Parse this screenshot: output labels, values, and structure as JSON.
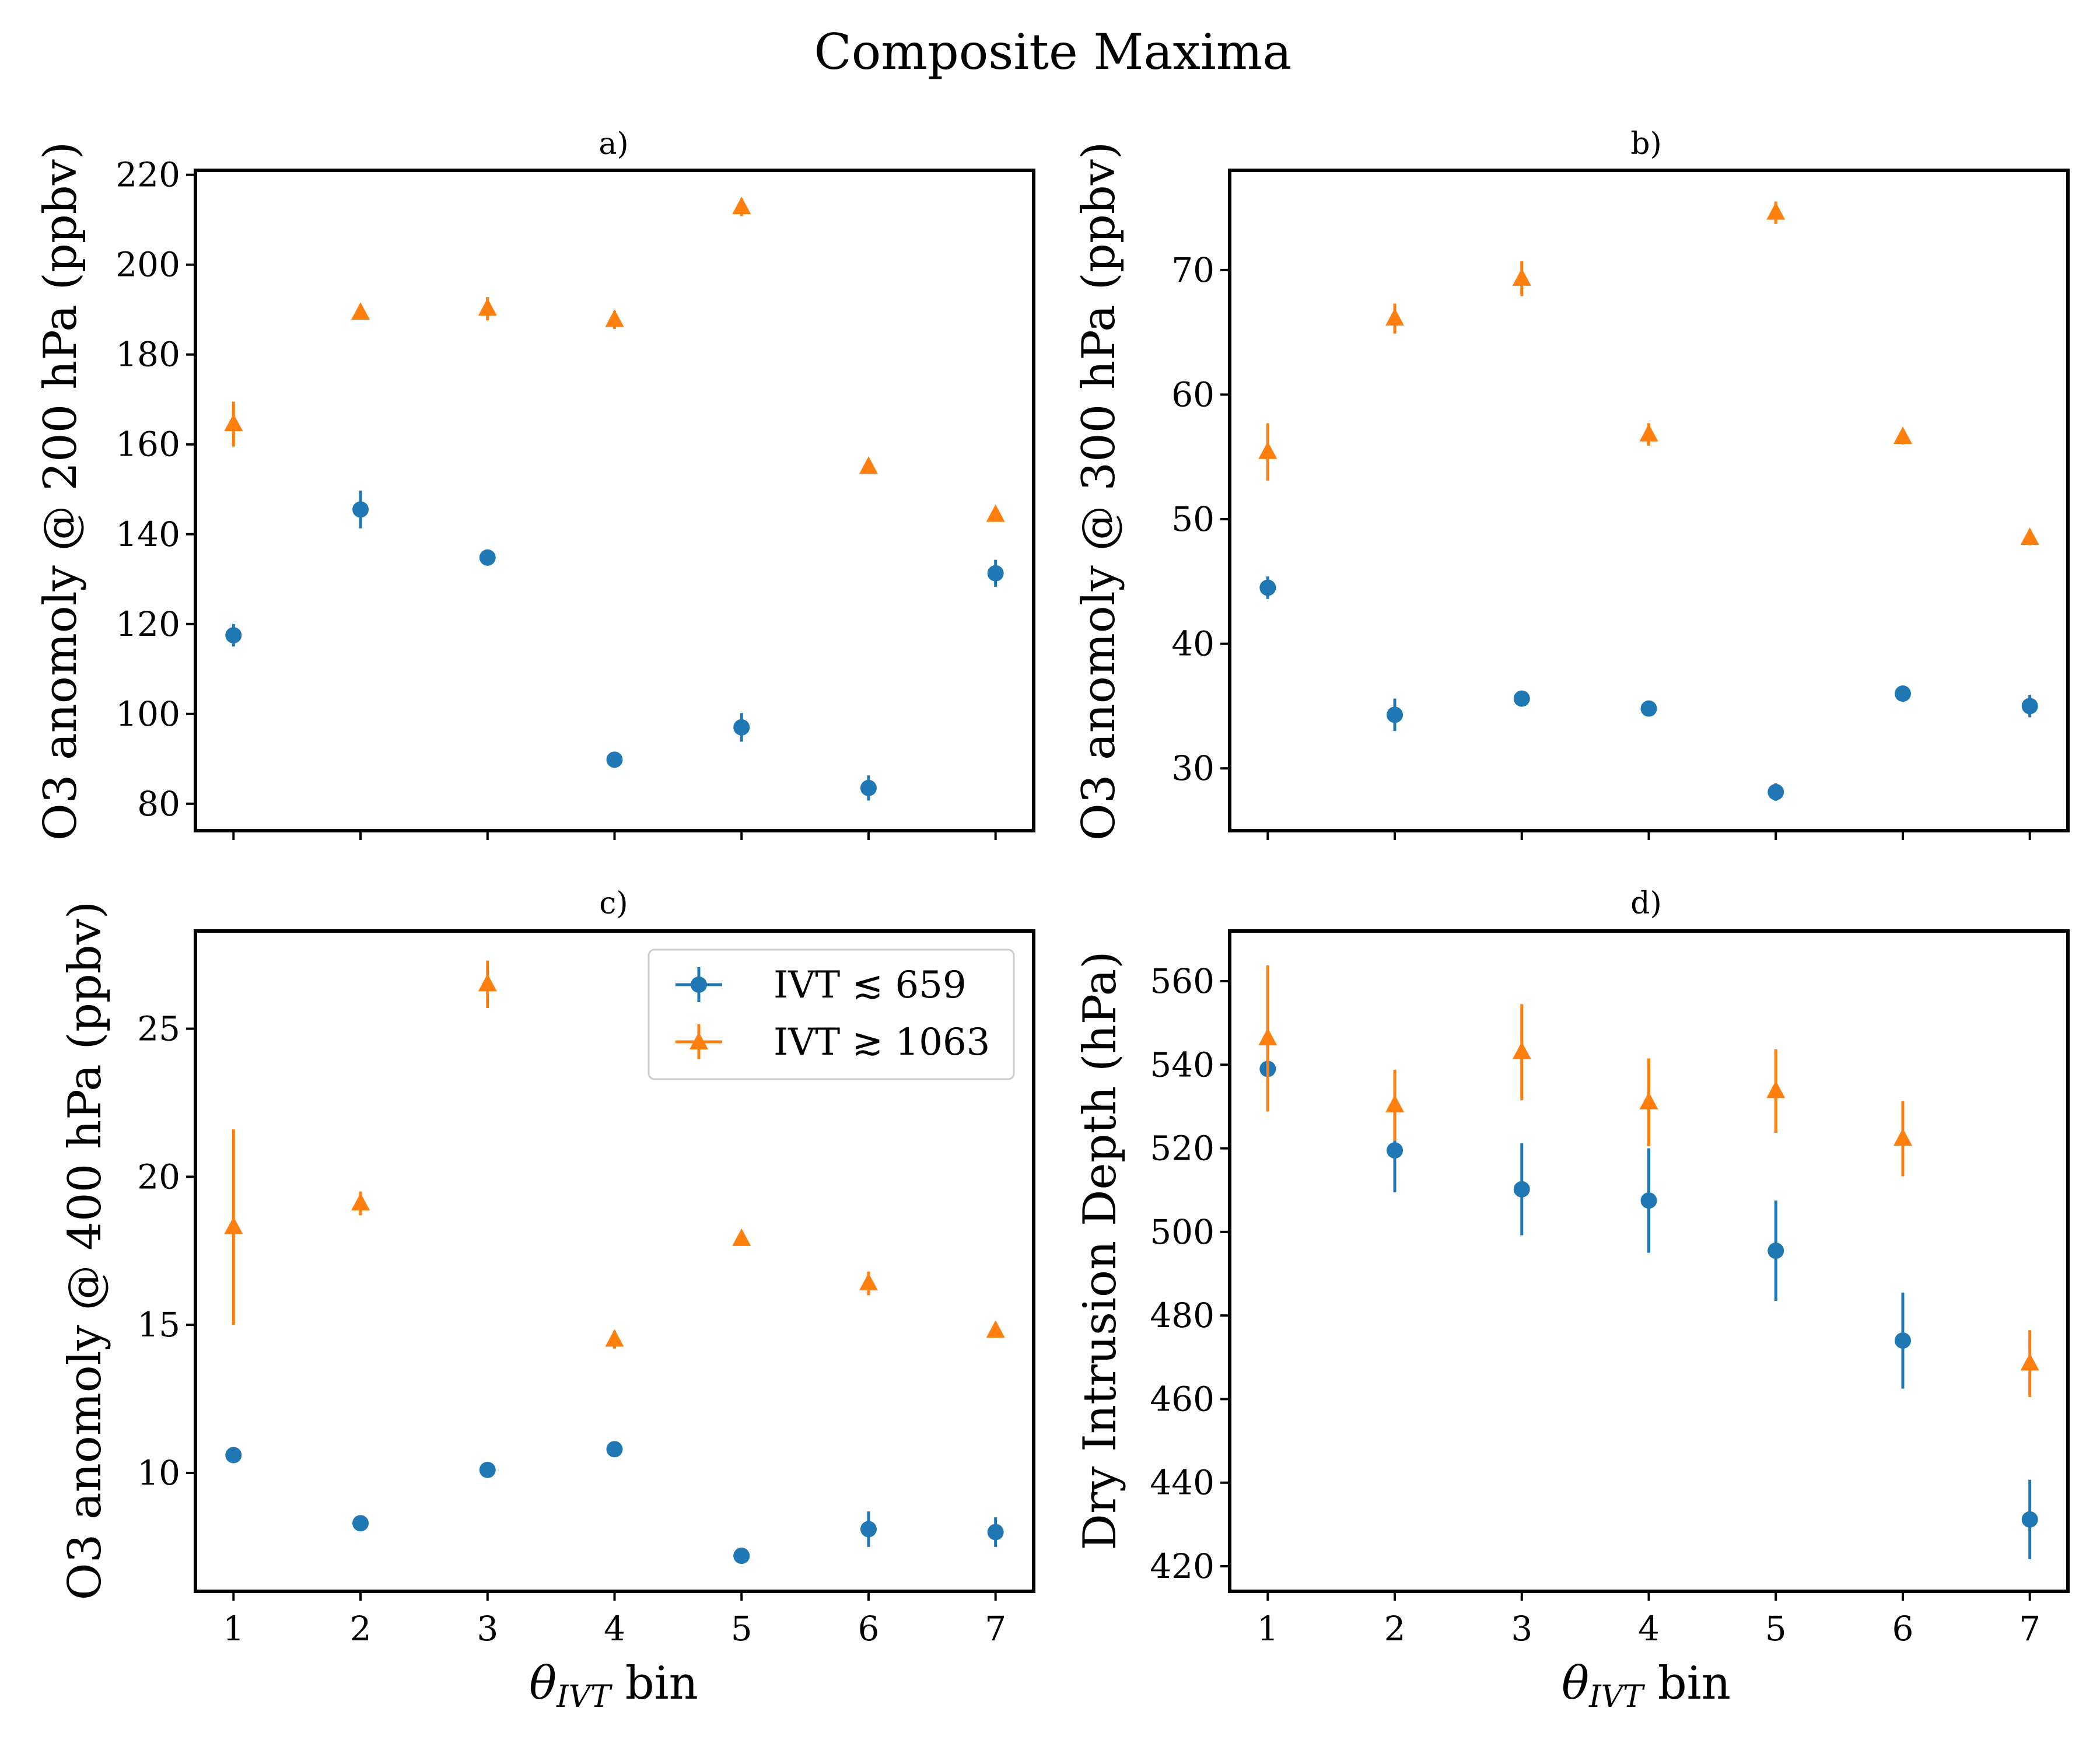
{
  "figure": {
    "title": "Composite Maxima"
  },
  "colors": {
    "low": "#1f77b4",
    "high": "#ff7f0e"
  },
  "legend": {
    "low_label": "IVT ≲ 659",
    "high_label": "IVT ≳ 1063",
    "location": "upper-right of panel c"
  },
  "chart_data": [
    {
      "id": "a",
      "title": "a)",
      "type": "scatter",
      "x": [
        1,
        2,
        3,
        4,
        5,
        6,
        7
      ],
      "xticks": [
        1,
        2,
        3,
        4,
        5,
        6,
        7
      ],
      "xlim": [
        0.7,
        7.3
      ],
      "show_xticklabels": false,
      "xlabel": "",
      "ylabel": "O3 anomoly @ 200 hPa (ppbv)",
      "ylim": [
        74,
        221
      ],
      "yticks": [
        80,
        100,
        120,
        140,
        160,
        180,
        200,
        220
      ],
      "series": [
        {
          "name": "IVT ≲ 659",
          "marker": "circle",
          "values": [
            117.5,
            145.5,
            134.8,
            89.8,
            97.0,
            83.5,
            131.3
          ],
          "errors": [
            2.5,
            4.2,
            1.8,
            0.6,
            3.2,
            2.8,
            3.0
          ]
        },
        {
          "name": "IVT ≳ 1063",
          "marker": "triangle",
          "values": [
            164.5,
            189.3,
            190.2,
            187.7,
            212.8,
            155.0,
            144.3
          ],
          "errors": [
            5.0,
            1.4,
            2.6,
            2.0,
            2.0,
            1.0,
            1.4
          ]
        }
      ]
    },
    {
      "id": "b",
      "title": "b)",
      "type": "scatter",
      "x": [
        1,
        2,
        3,
        4,
        5,
        6,
        7
      ],
      "xticks": [
        1,
        2,
        3,
        4,
        5,
        6,
        7
      ],
      "xlim": [
        0.7,
        7.3
      ],
      "show_xticklabels": false,
      "xlabel": "",
      "ylabel": "O3 anomoly @ 300 hPa (ppbv)",
      "ylim": [
        25,
        78
      ],
      "yticks": [
        30,
        40,
        50,
        60,
        70
      ],
      "series": [
        {
          "name": "IVT ≲ 659",
          "marker": "circle",
          "values": [
            44.5,
            34.3,
            35.6,
            34.8,
            28.1,
            36.0,
            35.0
          ],
          "errors": [
            0.9,
            1.3,
            0.6,
            0.6,
            0.7,
            0.5,
            0.9
          ]
        },
        {
          "name": "IVT ≳ 1063",
          "marker": "triangle",
          "values": [
            55.4,
            66.1,
            69.3,
            56.8,
            74.6,
            56.6,
            48.5
          ],
          "errors": [
            2.3,
            1.2,
            1.4,
            0.9,
            0.9,
            0.6,
            0.6
          ]
        }
      ]
    },
    {
      "id": "c",
      "title": "c)",
      "type": "scatter",
      "x": [
        1,
        2,
        3,
        4,
        5,
        6,
        7
      ],
      "xticks": [
        1,
        2,
        3,
        4,
        5,
        6,
        7
      ],
      "xlim": [
        0.7,
        7.3
      ],
      "show_xticklabels": true,
      "xlabel": "θIVT bin",
      "ylabel": "O3 anomoly @ 400 hPa (ppbv)",
      "ylim": [
        6.0,
        28.3
      ],
      "yticks": [
        10,
        15,
        20,
        25
      ],
      "series": [
        {
          "name": "IVT ≲ 659",
          "marker": "circle",
          "values": [
            10.6,
            8.3,
            10.1,
            10.8,
            7.2,
            8.1,
            8.0
          ],
          "errors": [
            0.2,
            0.2,
            0.2,
            0.2,
            0.2,
            0.6,
            0.5
          ]
        },
        {
          "name": "IVT ≳ 1063",
          "marker": "triangle",
          "values": [
            18.3,
            19.1,
            26.5,
            14.5,
            17.9,
            16.4,
            14.8
          ],
          "errors": [
            3.3,
            0.4,
            0.8,
            0.3,
            0.2,
            0.4,
            0.2
          ]
        }
      ]
    },
    {
      "id": "d",
      "title": "d)",
      "type": "scatter",
      "x": [
        1,
        2,
        3,
        4,
        5,
        6,
        7
      ],
      "xticks": [
        1,
        2,
        3,
        4,
        5,
        6,
        7
      ],
      "xlim": [
        0.7,
        7.3
      ],
      "show_xticklabels": true,
      "xlabel": "θIVT bin",
      "ylabel": "Dry Intrusion Depth (hPa)",
      "ylim": [
        414,
        572
      ],
      "yticks": [
        420,
        440,
        460,
        480,
        500,
        520,
        540,
        560
      ],
      "series": [
        {
          "name": "IVT ≲ 659",
          "marker": "circle",
          "values": [
            539,
            519.5,
            510.2,
            507.5,
            495.5,
            474.0,
            431.2
          ],
          "errors": [
            0,
            10.0,
            11.0,
            12.5,
            12.0,
            11.5,
            9.5
          ]
        },
        {
          "name": "IVT ≳ 1063",
          "marker": "triangle",
          "values": [
            546.3,
            530.3,
            543.0,
            531.0,
            533.7,
            522.3,
            468.5
          ],
          "errors": [
            17.5,
            8.5,
            11.5,
            10.5,
            10.0,
            9.0,
            8.0
          ]
        }
      ]
    }
  ]
}
